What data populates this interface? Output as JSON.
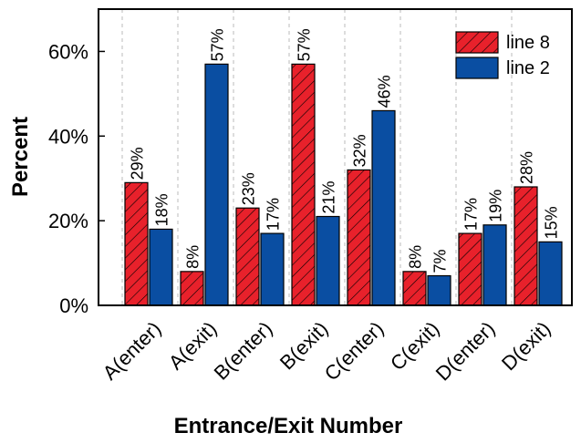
{
  "chart_data": {
    "type": "bar",
    "x_label": "Entrance/Exit Number",
    "y_label": "Percent",
    "categories": [
      "A(enter)",
      "A(exit)",
      "B(enter)",
      "B(exit)",
      "C(enter)",
      "C(exit)",
      "D(enter)",
      "D(exit)"
    ],
    "series": [
      {
        "name": "line 8",
        "color": "#e8212b",
        "hatch": true,
        "values": [
          29,
          8,
          23,
          57,
          32,
          8,
          17,
          28
        ],
        "value_labels": [
          "29%",
          "8%",
          "23%",
          "57%",
          "32%",
          "8%",
          "17%",
          "28%"
        ]
      },
      {
        "name": "line 2",
        "color": "#0a4ea2",
        "hatch": false,
        "values": [
          18,
          57,
          17,
          21,
          46,
          7,
          19,
          15
        ],
        "value_labels": [
          "18%",
          "57%",
          "17%",
          "21%",
          "46%",
          "7%",
          "19%",
          "15%"
        ]
      }
    ],
    "ylim": [
      0,
      70
    ],
    "yticks": [
      {
        "value": 0,
        "label": "0%"
      },
      {
        "value": 20,
        "label": "20%"
      },
      {
        "value": 40,
        "label": "40%"
      },
      {
        "value": 60,
        "label": "60%"
      }
    ],
    "grid": true,
    "legend": "upper right"
  }
}
